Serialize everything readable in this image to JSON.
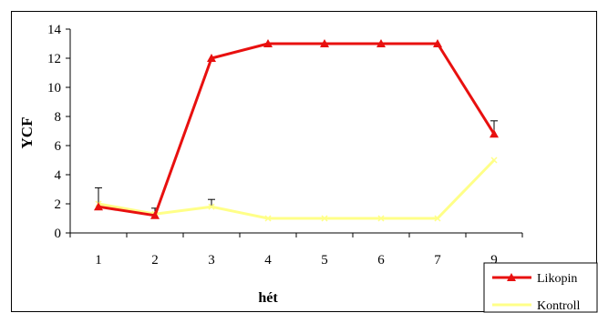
{
  "chart_data": {
    "type": "line",
    "xlabel": "hét",
    "ylabel": "YCF",
    "categories": [
      "1",
      "2",
      "3",
      "4",
      "5",
      "6",
      "7",
      "9"
    ],
    "ylim": [
      0,
      14
    ],
    "yticks": [
      0,
      2,
      4,
      6,
      8,
      10,
      12,
      14
    ],
    "grid": false,
    "legend_position": "bottom-right",
    "series": [
      {
        "name": "Likopin",
        "color": "#e8100f",
        "marker": "triangle",
        "values": [
          1.8,
          1.2,
          12.0,
          13.0,
          13.0,
          13.0,
          13.0,
          6.8
        ],
        "error_upper": [
          0,
          0.5,
          0,
          0,
          0,
          0,
          0,
          0.9
        ]
      },
      {
        "name": "Kontroll",
        "color": "#ffff88",
        "marker": "x",
        "values": [
          2.0,
          1.3,
          1.8,
          1.0,
          1.0,
          1.0,
          1.0,
          5.0
        ],
        "error_upper": [
          1.1,
          0,
          0.5,
          0,
          0,
          0,
          0,
          0
        ]
      }
    ]
  }
}
